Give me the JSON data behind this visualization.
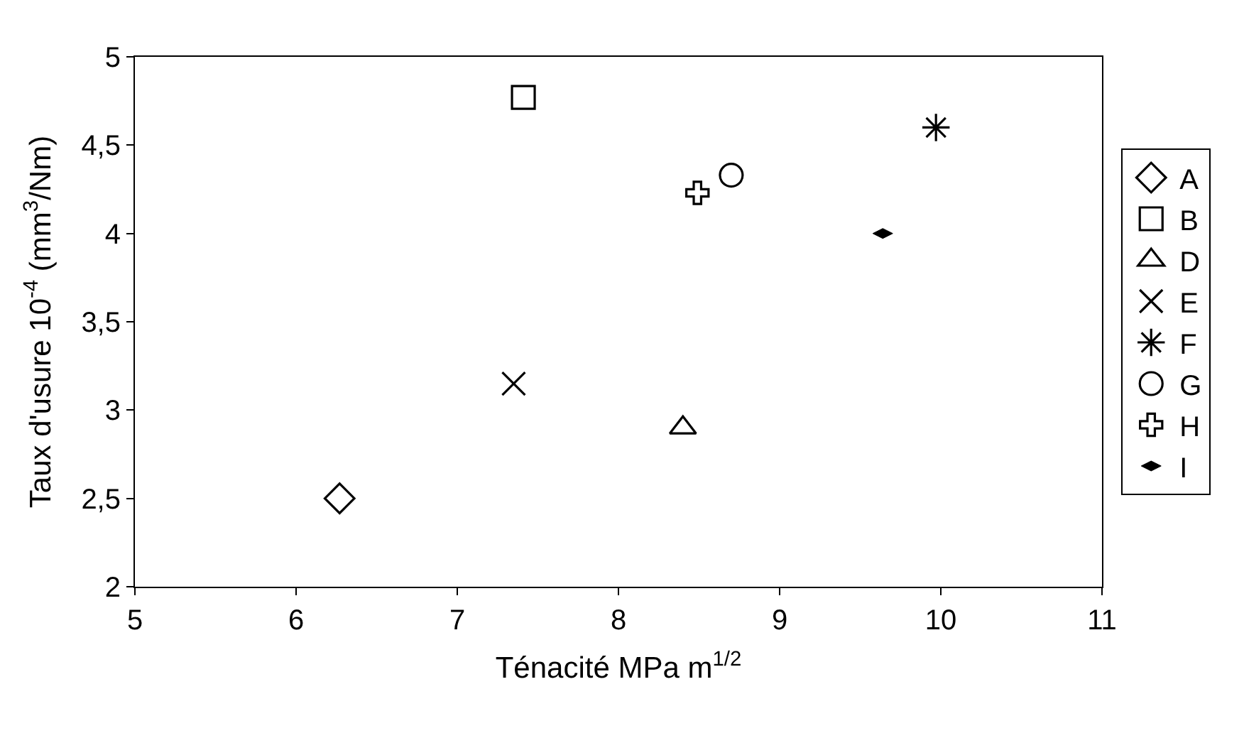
{
  "chart_data": {
    "type": "scatter",
    "xlabel": "Ténacité MPa m$^{1/2}$",
    "ylabel": "Taux d'usure 10$^{-4}$ (mm$^{3}$/Nm)",
    "xlim": [
      5,
      11
    ],
    "xticks": [
      5,
      6,
      7,
      8,
      9,
      10,
      11
    ],
    "ylim": [
      2,
      5
    ],
    "yticks": [
      2,
      {
        "value": 2.5,
        "label": "2,5"
      },
      3,
      {
        "value": 3.5,
        "label": "3,5"
      },
      4,
      {
        "value": 4.5,
        "label": "4,5"
      },
      5
    ],
    "legend": "right",
    "series": [
      {
        "name": "A",
        "color": "#000000",
        "marker": "diamond",
        "x": [
          6.27
        ],
        "values": [
          2.5
        ]
      },
      {
        "name": "B",
        "color": "#000000",
        "marker": "square",
        "x": [
          7.41
        ],
        "values": [
          4.77
        ]
      },
      {
        "name": "D",
        "color": "#000000",
        "marker": "triangle",
        "x": [
          8.4
        ],
        "values": [
          2.9
        ]
      },
      {
        "name": "E",
        "color": "#000000",
        "marker": "cross",
        "x": [
          7.35
        ],
        "values": [
          3.15
        ]
      },
      {
        "name": "F",
        "color": "#000000",
        "marker": "cross",
        "x": [
          9.97
        ],
        "values": [
          4.6
        ]
      },
      {
        "name": "G",
        "color": "#000000",
        "marker": "circle",
        "x": [
          8.7
        ],
        "values": [
          4.33
        ]
      },
      {
        "name": "H",
        "color": "#000000",
        "marker": "cross",
        "x": [
          8.49
        ],
        "values": [
          4.23
        ]
      },
      {
        "name": "I",
        "color": "#000000",
        "marker": "diamond",
        "x": [
          9.64
        ],
        "values": [
          4.0
        ]
      }
    ]
  }
}
